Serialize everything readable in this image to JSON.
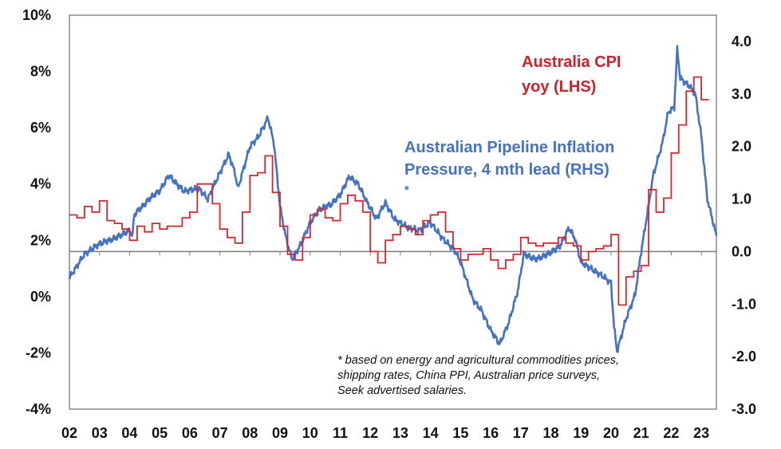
{
  "chart_data": {
    "type": "line",
    "title": "",
    "colors": {
      "cpi": "#d9262e",
      "pipeline": "#4472c4",
      "axis": "#808080"
    },
    "x_range": [
      2002,
      2023.5
    ],
    "x_ticks": [
      "02",
      "03",
      "04",
      "05",
      "06",
      "07",
      "08",
      "09",
      "10",
      "11",
      "12",
      "13",
      "14",
      "15",
      "16",
      "17",
      "18",
      "19",
      "20",
      "21",
      "22",
      "23"
    ],
    "y_left": {
      "range": [
        -4,
        10
      ],
      "ticks": [
        "10%",
        "8%",
        "6%",
        "4%",
        "2%",
        "0%",
        "-2%",
        "-4%"
      ],
      "tick_values": [
        10,
        8,
        6,
        4,
        2,
        0,
        -2,
        -4
      ]
    },
    "y_right": {
      "range": [
        -3.0,
        4.5
      ],
      "ticks": [
        "4.0",
        "3.0",
        "2.0",
        "1.0",
        "0.0",
        "-1.0",
        "-2.0",
        "-3.0"
      ],
      "tick_values": [
        4,
        3,
        2,
        1,
        0,
        -1,
        -2,
        -3
      ]
    },
    "series": [
      {
        "name": "Australia CPI yoy (LHS)",
        "label_lines": [
          "Australia CPI",
          "yoy (LHS)"
        ],
        "axis": "left",
        "step": true,
        "start": 2002.0,
        "interval": 0.25,
        "values": [
          2.9,
          2.8,
          3.2,
          3.0,
          3.4,
          2.7,
          2.6,
          2.4,
          2.0,
          2.5,
          2.3,
          2.6,
          2.4,
          2.5,
          2.5,
          2.8,
          3.0,
          4.0,
          4.0,
          3.3,
          2.4,
          2.1,
          1.9,
          3.0,
          4.3,
          4.4,
          5.0,
          3.7,
          2.5,
          1.5,
          1.3,
          2.1,
          2.9,
          3.1,
          2.8,
          2.7,
          3.3,
          3.6,
          3.4,
          3.0,
          1.6,
          1.2,
          2.0,
          2.2,
          2.5,
          2.4,
          2.2,
          2.7,
          2.9,
          3.0,
          2.3,
          1.7,
          1.3,
          1.5,
          1.5,
          1.7,
          1.3,
          1.0,
          1.3,
          1.5,
          2.1,
          1.9,
          1.8,
          1.9,
          1.9,
          2.1,
          1.9,
          1.8,
          1.3,
          1.6,
          1.7,
          1.8,
          2.2,
          -0.3,
          0.7,
          0.9,
          1.1,
          3.8,
          3.0,
          3.5,
          5.1,
          6.1,
          7.3,
          7.8,
          7.0,
          7.0
        ]
      },
      {
        "name": "Australian Pipeline Inflation Pressure, 4 mth lead (RHS) *",
        "label_lines": [
          "Australian Pipeline Inflation",
          "Pressure, 4 mth lead (RHS)",
          "*"
        ],
        "axis": "right",
        "step": false,
        "points": [
          [
            2002.0,
            -0.5
          ],
          [
            2002.5,
            -0.05
          ],
          [
            2003.0,
            0.15
          ],
          [
            2003.5,
            0.25
          ],
          [
            2004.0,
            0.4
          ],
          [
            2004.1,
            0.3
          ],
          [
            2004.15,
            0.7
          ],
          [
            2004.8,
            1.08
          ],
          [
            2005.0,
            1.15
          ],
          [
            2005.3,
            1.45
          ],
          [
            2005.8,
            1.15
          ],
          [
            2006.3,
            1.2
          ],
          [
            2006.6,
            1.0
          ],
          [
            2007.0,
            1.5
          ],
          [
            2007.3,
            1.85
          ],
          [
            2007.5,
            1.5
          ],
          [
            2007.6,
            1.2
          ],
          [
            2007.8,
            1.6
          ],
          [
            2008.0,
            2.0
          ],
          [
            2008.3,
            2.2
          ],
          [
            2008.6,
            2.55
          ],
          [
            2008.8,
            2.05
          ],
          [
            2009.0,
            0.85
          ],
          [
            2009.2,
            0.25
          ],
          [
            2009.4,
            -0.15
          ],
          [
            2009.7,
            0.15
          ],
          [
            2010.0,
            0.55
          ],
          [
            2010.3,
            0.8
          ],
          [
            2010.7,
            0.9
          ],
          [
            2011.0,
            1.08
          ],
          [
            2011.3,
            1.43
          ],
          [
            2011.6,
            1.28
          ],
          [
            2011.9,
            0.93
          ],
          [
            2012.2,
            0.62
          ],
          [
            2012.5,
            0.93
          ],
          [
            2012.8,
            0.62
          ],
          [
            2013.2,
            0.47
          ],
          [
            2013.6,
            0.4
          ],
          [
            2014.0,
            0.55
          ],
          [
            2014.4,
            0.25
          ],
          [
            2014.8,
            0.02
          ],
          [
            2015.0,
            -0.2
          ],
          [
            2015.4,
            -0.9
          ],
          [
            2015.7,
            -1.13
          ],
          [
            2016.0,
            -1.5
          ],
          [
            2016.3,
            -1.76
          ],
          [
            2016.6,
            -1.35
          ],
          [
            2016.9,
            -0.75
          ],
          [
            2017.1,
            -0.05
          ],
          [
            2017.5,
            -0.15
          ],
          [
            2017.9,
            -0.05
          ],
          [
            2018.3,
            0.1
          ],
          [
            2018.6,
            0.45
          ],
          [
            2018.8,
            0.25
          ],
          [
            2019.0,
            -0.2
          ],
          [
            2019.4,
            -0.35
          ],
          [
            2019.8,
            -0.5
          ],
          [
            2020.0,
            -0.6
          ],
          [
            2020.1,
            -1.43
          ],
          [
            2020.2,
            -1.9
          ],
          [
            2020.5,
            -1.28
          ],
          [
            2020.8,
            -0.82
          ],
          [
            2021.0,
            0.0
          ],
          [
            2021.2,
            0.7
          ],
          [
            2021.4,
            1.45
          ],
          [
            2021.7,
            2.05
          ],
          [
            2021.9,
            2.65
          ],
          [
            2022.1,
            2.75
          ],
          [
            2022.2,
            3.85
          ],
          [
            2022.3,
            3.3
          ],
          [
            2022.6,
            3.15
          ],
          [
            2022.8,
            3.0
          ],
          [
            2023.0,
            2.2
          ],
          [
            2023.2,
            1.0
          ],
          [
            2023.5,
            0.3
          ]
        ]
      }
    ],
    "footnote": [
      "* based on energy and agricultural commodities prices,",
      "shipping rates, China PPI, Australian price surveys,",
      "Seek advertised salaries."
    ],
    "grid": false,
    "legend": "inline labels"
  }
}
